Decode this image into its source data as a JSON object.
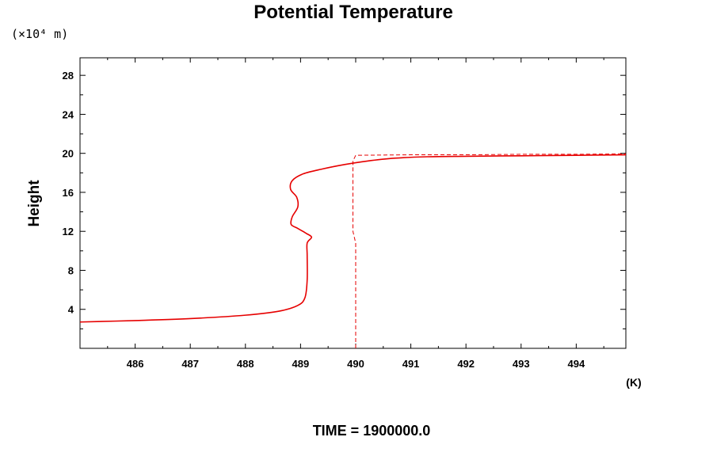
{
  "chart_data": {
    "type": "line",
    "title": "Potential Temperature",
    "ylabel": "Height",
    "yunit": "(×10⁴ m)",
    "xunit": "(K)",
    "footer": "TIME = 1900000.0",
    "xlim": [
      485.0,
      494.9
    ],
    "ylim": [
      0,
      29.8
    ],
    "xticks": [
      486,
      487,
      488,
      489,
      490,
      491,
      492,
      493,
      494
    ],
    "xtick_labels": [
      "486",
      "487",
      "488",
      "489",
      "490",
      "491",
      "492",
      "493",
      "494"
    ],
    "yticks": [
      4,
      8,
      12,
      16,
      20,
      24,
      28
    ],
    "ytick_labels": [
      "4",
      "8",
      "12",
      "16",
      "20",
      "24",
      "28"
    ],
    "grid": false,
    "line_color": "#e60000",
    "series": [
      {
        "style": "solid",
        "points": [
          [
            485.0,
            2.7
          ],
          [
            486.0,
            2.85
          ],
          [
            487.0,
            3.05
          ],
          [
            488.0,
            3.4
          ],
          [
            488.6,
            3.8
          ],
          [
            488.95,
            4.4
          ],
          [
            489.08,
            5.2
          ],
          [
            489.12,
            7.0
          ],
          [
            489.12,
            9.5
          ],
          [
            489.12,
            10.8
          ],
          [
            489.2,
            11.4
          ],
          [
            489.1,
            11.8
          ],
          [
            488.95,
            12.3
          ],
          [
            488.83,
            12.7
          ],
          [
            488.85,
            13.5
          ],
          [
            488.95,
            14.5
          ],
          [
            488.93,
            15.5
          ],
          [
            488.82,
            16.3
          ],
          [
            488.85,
            17.2
          ],
          [
            489.05,
            17.9
          ],
          [
            489.4,
            18.4
          ],
          [
            489.8,
            18.85
          ],
          [
            490.2,
            19.2
          ],
          [
            490.7,
            19.5
          ],
          [
            491.3,
            19.65
          ],
          [
            492.0,
            19.7
          ],
          [
            493.0,
            19.75
          ],
          [
            494.0,
            19.8
          ],
          [
            494.9,
            19.85
          ]
        ]
      },
      {
        "style": "dashed",
        "points": [
          [
            490.0,
            0.0
          ],
          [
            490.0,
            10.8
          ],
          [
            489.95,
            12.0
          ],
          [
            489.95,
            19.2
          ],
          [
            490.0,
            19.8
          ],
          [
            491.0,
            19.85
          ],
          [
            492.0,
            19.85
          ],
          [
            493.0,
            19.9
          ],
          [
            494.0,
            19.9
          ],
          [
            494.9,
            19.95
          ]
        ]
      }
    ]
  }
}
